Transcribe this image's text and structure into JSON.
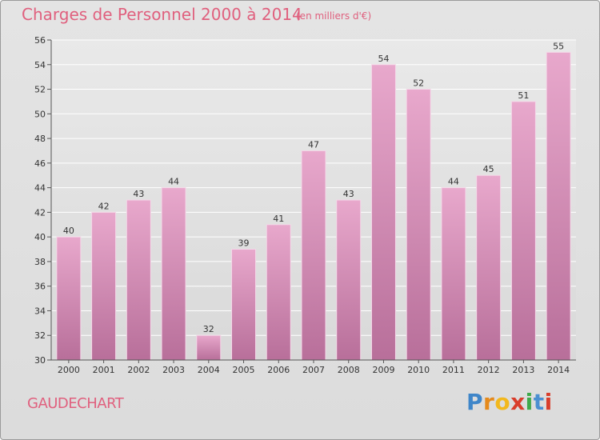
{
  "header": {
    "title": "Charges de Personnel 2000 à 2014",
    "subtitle": "(en milliers d'€)"
  },
  "footer": {
    "place": "GAUDECHART",
    "logo": [
      "P",
      "r",
      "o",
      "x",
      "i",
      "t",
      "i"
    ]
  },
  "colors": {
    "title": "#e0607e",
    "bar_top": "#e8a8cc",
    "bar_bottom": "#b86f9a",
    "grid": "#ffffff",
    "axis_text": "#333333",
    "logo": [
      "#3f86c9",
      "#e58a1b",
      "#f2b81d",
      "#d93d2b",
      "#3fa94a",
      "#4a8fd1",
      "#d93d2b"
    ]
  },
  "chart_data": {
    "type": "bar",
    "categories": [
      "2000",
      "2001",
      "2002",
      "2003",
      "2004",
      "2005",
      "2006",
      "2007",
      "2008",
      "2009",
      "2010",
      "2011",
      "2012",
      "2013",
      "2014"
    ],
    "values": [
      40,
      42,
      43,
      44,
      32,
      39,
      41,
      47,
      43,
      54,
      52,
      44,
      45,
      51,
      55
    ],
    "title": "Charges de Personnel 2000 à 2014",
    "ylim": [
      30,
      56
    ],
    "yticks": [
      30,
      32,
      34,
      36,
      38,
      40,
      42,
      44,
      46,
      48,
      50,
      52,
      54,
      56
    ],
    "grid": true
  }
}
